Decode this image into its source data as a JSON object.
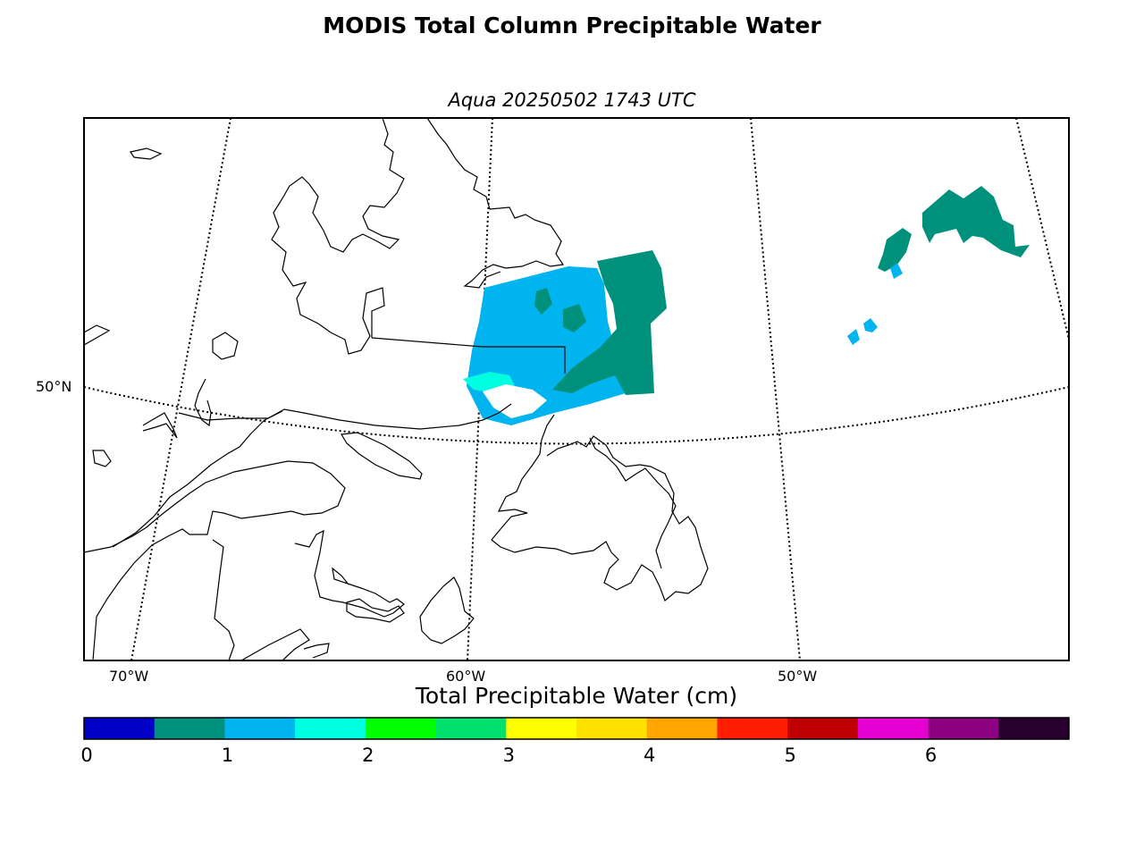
{
  "title": "MODIS Total Column Precipitable Water",
  "subtitle": "Aqua 20250502 1743 UTC",
  "map": {
    "lat_labels": [
      "50°N"
    ],
    "lon_labels": [
      "70°W",
      "60°W",
      "50°W"
    ]
  },
  "colorbar": {
    "label": "Total Precipitable Water (cm)",
    "ticks": [
      "0",
      "1",
      "2",
      "3",
      "4",
      "5",
      "6"
    ],
    "colors": [
      "#0000c8",
      "#00917d",
      "#00b4f0",
      "#00ffe1",
      "#00ff00",
      "#00e16e",
      "#ffff00",
      "#ffe100",
      "#ffa500",
      "#ff1e00",
      "#be0000",
      "#e600d2",
      "#8c0082",
      "#28002d"
    ]
  }
}
